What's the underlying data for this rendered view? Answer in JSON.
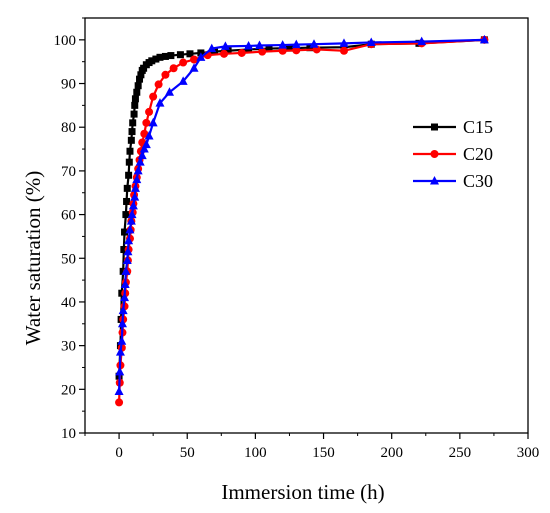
{
  "chart_data": {
    "type": "line",
    "title": "",
    "xlabel": "Immersion time (h)",
    "ylabel": "Water saturation (%)",
    "xlim": [
      -25,
      300
    ],
    "ylim": [
      10,
      105
    ],
    "x_ticks": [
      0,
      50,
      100,
      150,
      200,
      250,
      300
    ],
    "y_ticks": [
      10,
      20,
      30,
      40,
      50,
      60,
      70,
      80,
      90,
      100
    ],
    "x_tick_labels": [
      "0",
      "50",
      "100",
      "150",
      "200",
      "250",
      "300"
    ],
    "y_tick_labels": [
      "10",
      "20",
      "30",
      "40",
      "50",
      "60",
      "70",
      "80",
      "90",
      "100"
    ],
    "grid": false,
    "legend_position": "right",
    "series": [
      {
        "name": "C15",
        "color": "#000000",
        "marker": "square",
        "points": [
          [
            0,
            23
          ],
          [
            1,
            30
          ],
          [
            1.5,
            36
          ],
          [
            2,
            42
          ],
          [
            3,
            47
          ],
          [
            3.5,
            52
          ],
          [
            4,
            56
          ],
          [
            5,
            60
          ],
          [
            5.5,
            63
          ],
          [
            6,
            66
          ],
          [
            7,
            69
          ],
          [
            7.5,
            72
          ],
          [
            8,
            74.5
          ],
          [
            9,
            77
          ],
          [
            9.5,
            79
          ],
          [
            10,
            81
          ],
          [
            11,
            83
          ],
          [
            11.5,
            85
          ],
          [
            12,
            86.5
          ],
          [
            13,
            88
          ],
          [
            14,
            89.5
          ],
          [
            15,
            91
          ],
          [
            16,
            92
          ],
          [
            17,
            93
          ],
          [
            18,
            93.5
          ],
          [
            20,
            94.3
          ],
          [
            22,
            94.8
          ],
          [
            24,
            95.2
          ],
          [
            27,
            95.6
          ],
          [
            30,
            96
          ],
          [
            34,
            96.2
          ],
          [
            38,
            96.4
          ],
          [
            45,
            96.6
          ],
          [
            52,
            96.8
          ],
          [
            60,
            97
          ],
          [
            70,
            97.3
          ],
          [
            80,
            97.5
          ],
          [
            95,
            97.8
          ],
          [
            110,
            98
          ],
          [
            125,
            98.1
          ],
          [
            140,
            98.2
          ],
          [
            165,
            98.3
          ],
          [
            185,
            99
          ],
          [
            220,
            99.2
          ],
          [
            268,
            100
          ]
        ]
      },
      {
        "name": "C20",
        "color": "#ff0000",
        "marker": "circle",
        "points": [
          [
            0,
            17
          ],
          [
            0.5,
            21.5
          ],
          [
            1,
            25.5
          ],
          [
            2,
            29.5
          ],
          [
            2.5,
            33
          ],
          [
            3,
            36
          ],
          [
            4,
            39
          ],
          [
            4.5,
            42
          ],
          [
            5,
            44.5
          ],
          [
            6,
            47
          ],
          [
            6.5,
            49.5
          ],
          [
            7,
            52
          ],
          [
            8,
            54.5
          ],
          [
            8.5,
            56.5
          ],
          [
            9,
            58.5
          ],
          [
            10,
            60.5
          ],
          [
            10.5,
            62.5
          ],
          [
            11,
            64.5
          ],
          [
            12,
            66.5
          ],
          [
            13,
            68.5
          ],
          [
            14,
            70.5
          ],
          [
            15,
            72.5
          ],
          [
            16,
            74.5
          ],
          [
            17,
            76.5
          ],
          [
            18.5,
            78.5
          ],
          [
            20,
            81
          ],
          [
            22,
            83.5
          ],
          [
            25,
            87
          ],
          [
            29,
            89.8
          ],
          [
            34,
            92
          ],
          [
            40,
            93.5
          ],
          [
            47,
            94.8
          ],
          [
            55,
            95.5
          ],
          [
            65,
            96.5
          ],
          [
            77,
            96.8
          ],
          [
            90,
            97
          ],
          [
            105,
            97.3
          ],
          [
            120,
            97.5
          ],
          [
            130,
            97.6
          ],
          [
            145,
            97.8
          ],
          [
            165,
            97.5
          ],
          [
            185,
            99
          ],
          [
            222,
            99.2
          ],
          [
            268,
            100
          ]
        ]
      },
      {
        "name": "C30",
        "color": "#0000ff",
        "marker": "triangle",
        "points": [
          [
            0,
            19.5
          ],
          [
            0.5,
            24
          ],
          [
            1,
            28.5
          ],
          [
            2,
            31
          ],
          [
            2.5,
            35
          ],
          [
            3,
            38
          ],
          [
            4,
            41
          ],
          [
            4.5,
            44
          ],
          [
            5,
            47
          ],
          [
            6,
            49.5
          ],
          [
            6.5,
            51.5
          ],
          [
            7,
            54
          ],
          [
            8,
            56.5
          ],
          [
            9,
            58.5
          ],
          [
            9.5,
            60
          ],
          [
            10.5,
            62
          ],
          [
            11.5,
            64
          ],
          [
            12,
            66
          ],
          [
            13,
            68
          ],
          [
            14,
            70
          ],
          [
            15.5,
            72
          ],
          [
            17,
            73.5
          ],
          [
            18.5,
            75
          ],
          [
            20,
            76
          ],
          [
            22,
            78
          ],
          [
            25,
            81
          ],
          [
            30,
            85.5
          ],
          [
            37,
            88
          ],
          [
            47,
            90.5
          ],
          [
            55,
            93.5
          ],
          [
            60,
            96
          ],
          [
            68,
            98
          ],
          [
            78,
            98.5
          ],
          [
            95,
            98.6
          ],
          [
            103,
            98.7
          ],
          [
            120,
            98.8
          ],
          [
            130,
            98.9
          ],
          [
            143,
            99
          ],
          [
            165,
            99.2
          ],
          [
            185,
            99.4
          ],
          [
            222,
            99.6
          ],
          [
            268,
            100
          ]
        ]
      }
    ]
  }
}
